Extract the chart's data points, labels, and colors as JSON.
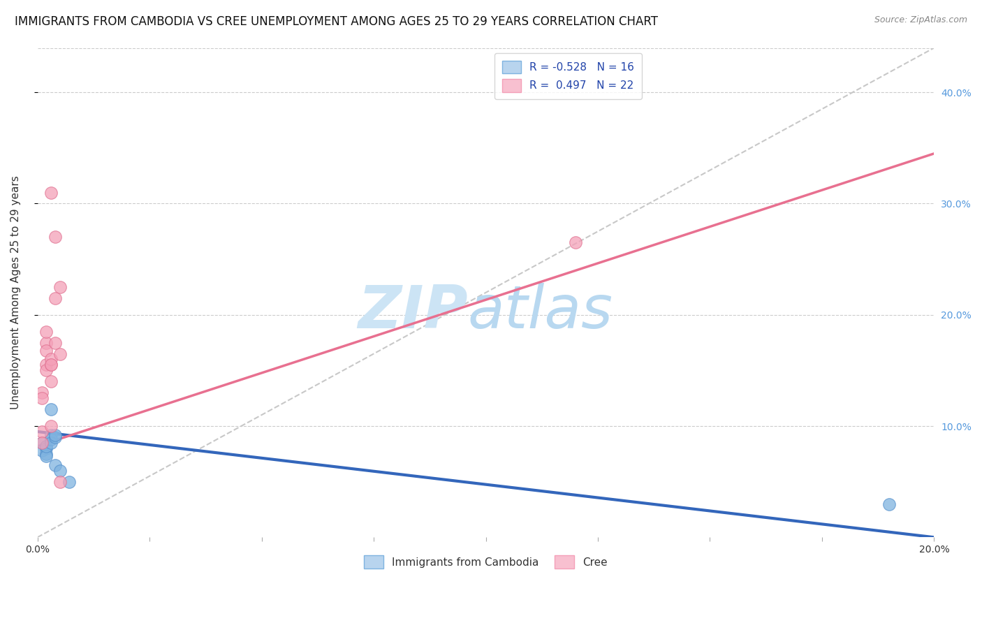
{
  "title": "IMMIGRANTS FROM CAMBODIA VS CREE UNEMPLOYMENT AMONG AGES 25 TO 29 YEARS CORRELATION CHART",
  "source": "Source: ZipAtlas.com",
  "ylabel": "Unemployment Among Ages 25 to 29 years",
  "xlim": [
    0.0,
    0.2
  ],
  "ylim": [
    0.0,
    0.44
  ],
  "blue_scatter": [
    [
      0.001,
      0.085
    ],
    [
      0.001,
      0.078
    ],
    [
      0.002,
      0.08
    ],
    [
      0.002,
      0.075
    ],
    [
      0.002,
      0.073
    ],
    [
      0.002,
      0.082
    ],
    [
      0.003,
      0.092
    ],
    [
      0.003,
      0.088
    ],
    [
      0.003,
      0.085
    ],
    [
      0.003,
      0.115
    ],
    [
      0.004,
      0.09
    ],
    [
      0.004,
      0.092
    ],
    [
      0.004,
      0.065
    ],
    [
      0.005,
      0.06
    ],
    [
      0.007,
      0.05
    ],
    [
      0.19,
      0.03
    ]
  ],
  "pink_scatter": [
    [
      0.001,
      0.13
    ],
    [
      0.001,
      0.125
    ],
    [
      0.001,
      0.095
    ],
    [
      0.001,
      0.085
    ],
    [
      0.002,
      0.175
    ],
    [
      0.002,
      0.185
    ],
    [
      0.002,
      0.168
    ],
    [
      0.002,
      0.155
    ],
    [
      0.002,
      0.15
    ],
    [
      0.003,
      0.155
    ],
    [
      0.003,
      0.14
    ],
    [
      0.003,
      0.16
    ],
    [
      0.003,
      0.1
    ],
    [
      0.003,
      0.155
    ],
    [
      0.003,
      0.31
    ],
    [
      0.004,
      0.175
    ],
    [
      0.004,
      0.215
    ],
    [
      0.004,
      0.27
    ],
    [
      0.005,
      0.225
    ],
    [
      0.005,
      0.165
    ],
    [
      0.005,
      0.05
    ],
    [
      0.12,
      0.265
    ]
  ],
  "blue_line_x": [
    0.0,
    0.2
  ],
  "blue_line_y": [
    0.095,
    0.0
  ],
  "pink_line_x": [
    0.0,
    0.2
  ],
  "pink_line_y": [
    0.082,
    0.345
  ],
  "gray_dash_line_x": [
    0.0,
    0.2
  ],
  "gray_dash_line_y": [
    0.0,
    0.44
  ],
  "blue_color": "#7fb3e0",
  "pink_color": "#f4a0b8",
  "blue_scatter_edge": "#5590cc",
  "pink_scatter_edge": "#e07090",
  "blue_line_color": "#3366bb",
  "pink_line_color": "#e87090",
  "gray_dash_color": "#c8c8c8",
  "watermark_zip_color": "#cce4f5",
  "watermark_atlas_color": "#b8d8f0",
  "title_fontsize": 12,
  "axis_label_fontsize": 11,
  "tick_fontsize": 10,
  "right_tick_color": "#5599dd",
  "scatter_size": 160,
  "legend_text_color": "#2244aa"
}
